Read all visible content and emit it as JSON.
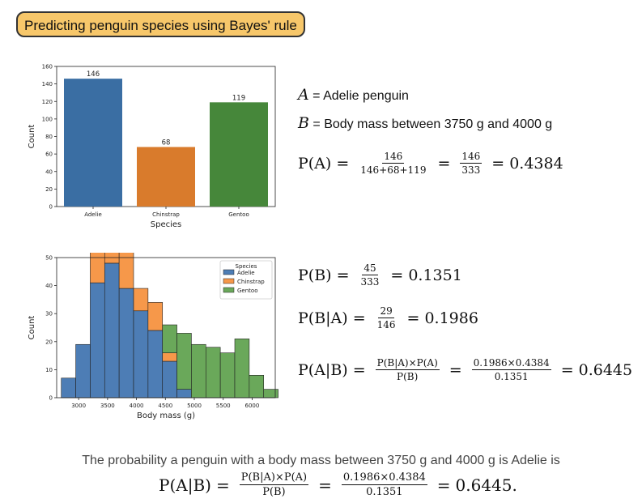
{
  "title": "Predicting penguin species using Bayes' rule",
  "chart_data": [
    {
      "type": "bar",
      "categories": [
        "Adelie",
        "Chinstrap",
        "Gentoo"
      ],
      "values": [
        146,
        68,
        119
      ],
      "colors": [
        "#3a6ea3",
        "#d97b2c",
        "#46873a"
      ],
      "xlabel": "Species",
      "ylabel": "Count",
      "ylim": [
        0,
        160
      ],
      "yticks": [
        0,
        20,
        40,
        60,
        80,
        100,
        120,
        140,
        160
      ],
      "grid": false
    },
    {
      "type": "bar",
      "subtype": "stacked-histogram",
      "bin_start": 2700,
      "bin_width": 250,
      "series": [
        {
          "name": "Adelie",
          "color": "#4d7db5",
          "values": [
            7,
            19,
            41,
            48,
            39,
            31,
            24,
            13,
            3,
            0,
            0,
            0,
            0,
            0,
            0
          ]
        },
        {
          "name": "Chinstrap",
          "color": "#f6984a",
          "values": [
            0,
            0,
            14,
            20,
            16,
            8,
            10,
            3,
            0,
            0,
            0,
            0,
            0,
            0,
            0
          ]
        },
        {
          "name": "Gentoo",
          "color": "#6aa85a",
          "values": [
            0,
            0,
            0,
            0,
            0,
            0,
            0,
            10,
            20,
            19,
            18,
            16,
            21,
            8,
            3
          ]
        }
      ],
      "totals": [
        7,
        19,
        41,
        48,
        39,
        31,
        24,
        26,
        22,
        19,
        18,
        16,
        21,
        8,
        3
      ],
      "xlabel": "Body mass (g)",
      "ylabel": "Count",
      "xticks": [
        3000,
        3500,
        4000,
        4500,
        5000,
        5500,
        6000
      ],
      "ylim": [
        0,
        50
      ],
      "yticks": [
        0,
        10,
        20,
        30,
        40,
        50
      ],
      "legend_title": "Species",
      "legend_position": "top-right"
    }
  ],
  "definitions": {
    "a_symbol": "A",
    "a_text": " = Adelie penguin",
    "b_symbol": "B",
    "b_text": " = Body mass between 3750 g and 4000 g"
  },
  "formulas": {
    "pa": {
      "lhs": "P(A)",
      "num1": "146",
      "den1": "146+68+119",
      "num2": "146",
      "den2": "333",
      "result": "0.4384"
    },
    "pb": {
      "lhs": "P(B)",
      "num": "45",
      "den": "333",
      "result": "0.1351"
    },
    "pba": {
      "lhs": "P(B|A)",
      "num": "29",
      "den": "146",
      "result": "0.1986"
    },
    "pab": {
      "lhs": "P(A|B)",
      "num1": "P(B|A)×P(A)",
      "den1": "P(B)",
      "num2": "0.1986×0.4384",
      "den2": "0.1351",
      "result": "0.6445"
    }
  },
  "conclusion": {
    "text": "The probability a penguin with a body mass between 3750 g and 4000 g is Adelie is",
    "lhs": "P(A|B)",
    "num1": "P(B|A)×P(A)",
    "den1": "P(B)",
    "num2": "0.1986×0.4384",
    "den2": "0.1351",
    "result": "0.6445."
  }
}
